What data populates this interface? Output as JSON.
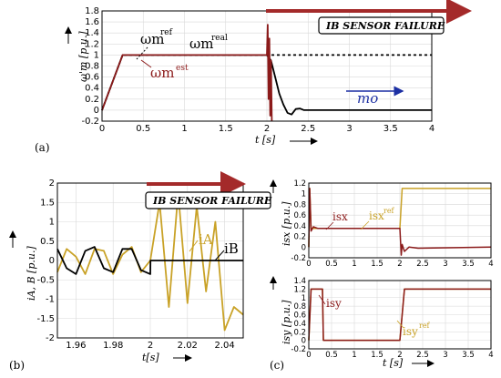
{
  "chart_data": [
    {
      "panel": "(a)",
      "type": "line",
      "xlabel": "t [s]",
      "ylabel": "ω'm [p.u.]",
      "xlim": [
        0,
        4
      ],
      "ylim": [
        -0.2,
        1.8
      ],
      "xticks": [
        "0",
        "0.5",
        "1",
        "1.5",
        "2",
        "2.5",
        "3",
        "3.5",
        "4"
      ],
      "yticks": [
        "-0.2",
        "0",
        "0.2",
        "0.4",
        "0.6",
        "0.8",
        "1",
        "1.2",
        "1.4",
        "1.6",
        "1.8"
      ],
      "grid": true,
      "series": [
        {
          "name": "ωm ref",
          "style": "dashed",
          "color": "#000000",
          "x": [
            0,
            0.25,
            2.0,
            4.0
          ],
          "y": [
            0,
            1,
            1,
            1
          ]
        },
        {
          "name": "ωm real",
          "color": "#000000",
          "x": [
            0,
            0.25,
            2.0,
            2.05,
            2.1,
            2.15,
            2.2,
            2.25,
            2.3,
            2.35,
            2.4,
            2.45,
            2.5,
            4.0
          ],
          "y": [
            0,
            1,
            1,
            0.9,
            0.6,
            0.3,
            0.1,
            -0.05,
            -0.08,
            0.02,
            0.03,
            0,
            0,
            0
          ]
        },
        {
          "name": "ωm est",
          "color": "#8b1a1a",
          "x": [
            0,
            0.25,
            2.0,
            2.01,
            2.02,
            2.03,
            2.04,
            2.05,
            2.06
          ],
          "y": [
            0,
            1,
            1,
            1.55,
            0.2,
            1.3,
            -0.1,
            0.9,
            -0.2
          ]
        }
      ],
      "annotations": {
        "failure": "IB SENSOR FAILURE",
        "label_ref": "ωm",
        "label_ref_sup": "ref",
        "label_real": "ωm",
        "label_real_sup": "real",
        "label_est": "ωm",
        "label_est_sup": "est",
        "label_mo": "mo"
      }
    },
    {
      "panel": "(b)",
      "type": "line",
      "xlabel": "t[s]",
      "ylabel": "iA, B [p.u.]",
      "xlim": [
        1.95,
        2.05
      ],
      "ylim": [
        -2,
        2
      ],
      "xticks": [
        "1.96",
        "1.98",
        "2",
        "2.02",
        "2.04"
      ],
      "yticks": [
        "-2",
        "-1.5",
        "-1",
        "-0.5",
        "0",
        "0.5",
        "1",
        "1.5",
        "2"
      ],
      "grid": true,
      "series": [
        {
          "name": "iA",
          "color": "#c9a227",
          "x": [
            1.95,
            1.955,
            1.96,
            1.965,
            1.97,
            1.975,
            1.98,
            1.985,
            1.99,
            1.995,
            2.0,
            2.005,
            2.01,
            2.015,
            2.02,
            2.025,
            2.03,
            2.035,
            2.04,
            2.045,
            2.05
          ],
          "y": [
            -0.3,
            0.3,
            0.1,
            -0.35,
            0.3,
            0.25,
            -0.35,
            0.15,
            0.35,
            -0.3,
            0.0,
            1.5,
            -1.2,
            1.75,
            -1.1,
            1.4,
            -0.8,
            1.0,
            -1.8,
            -1.2,
            -1.4
          ]
        },
        {
          "name": "iB",
          "color": "#000000",
          "x": [
            1.95,
            1.955,
            1.96,
            1.965,
            1.97,
            1.975,
            1.98,
            1.985,
            1.99,
            1.995,
            2.0,
            2.0001,
            2.05
          ],
          "y": [
            0.3,
            -0.2,
            -0.35,
            0.25,
            0.35,
            -0.2,
            -0.3,
            0.3,
            0.3,
            -0.25,
            -0.35,
            0,
            0
          ]
        }
      ],
      "annotations": {
        "failure": "IB SENSOR FAILURE",
        "label_A": "iA",
        "label_B": "iB"
      }
    },
    {
      "panel": "(c)",
      "type": "line",
      "xlabel": "t [s]",
      "sub": [
        {
          "ylabel": "isx [p.u.]",
          "xlim": [
            0,
            4
          ],
          "ylim": [
            -0.2,
            1.2
          ],
          "xticks": [
            "0",
            "0.5",
            "1",
            "1.5",
            "2",
            "2.5",
            "3",
            "3.5",
            "4"
          ],
          "yticks": [
            "-0.2",
            "0",
            "0.2",
            "0.4",
            "0.6",
            "0.8",
            "1",
            "1.2"
          ],
          "series": [
            {
              "name": "isx ref",
              "color": "#c9a227",
              "x": [
                0,
                0.02,
                0.05,
                0.1,
                0.2,
                2.0,
                2.05,
                4.0
              ],
              "y": [
                0,
                1.1,
                0.35,
                0.35,
                0.35,
                0.35,
                1.1,
                1.1
              ]
            },
            {
              "name": "isx",
              "color": "#8b1a1a",
              "x": [
                0,
                0.02,
                0.05,
                0.1,
                0.2,
                2.0,
                2.03,
                2.05,
                2.1,
                2.2,
                2.4,
                4.0
              ],
              "y": [
                0,
                1.1,
                0.3,
                0.38,
                0.35,
                0.35,
                -0.15,
                0.05,
                -0.08,
                0.0,
                -0.02,
                0
              ]
            }
          ],
          "labels": {
            "isx": "isx",
            "isx_ref": "isx",
            "isx_ref_sup": "ref"
          }
        },
        {
          "ylabel": "isy [p.u.]",
          "xlim": [
            0,
            4
          ],
          "ylim": [
            -0.2,
            1.4
          ],
          "xticks": [
            "0",
            "0.5",
            "1",
            "1.5",
            "2",
            "2.5",
            "3",
            "3.5",
            "4"
          ],
          "yticks": [
            "-0.2",
            "0",
            "0.2",
            "0.4",
            "0.6",
            "0.8",
            "1",
            "1.2",
            "1.4"
          ],
          "series": [
            {
              "name": "isy ref",
              "color": "#c9a227",
              "x": [
                0,
                0.05,
                0.3,
                0.32,
                2.0,
                2.1,
                4.0
              ],
              "y": [
                0,
                1.2,
                1.2,
                0,
                0,
                1.2,
                1.2
              ]
            },
            {
              "name": "isy",
              "color": "#8b1a1a",
              "x": [
                0,
                0.05,
                0.3,
                0.32,
                2.0,
                2.1,
                4.0
              ],
              "y": [
                0,
                1.2,
                1.2,
                0,
                0,
                1.2,
                1.2
              ]
            }
          ],
          "labels": {
            "isy": "isy",
            "isy_ref": "isy",
            "isy_ref_sup": "ref"
          }
        }
      ]
    }
  ],
  "colors": {
    "gold": "#c9a227",
    "darkred": "#8b1a1a",
    "arrow_red": "#a42a2a",
    "blue": "#1c2fa3",
    "grid": "#d9d9d9"
  }
}
